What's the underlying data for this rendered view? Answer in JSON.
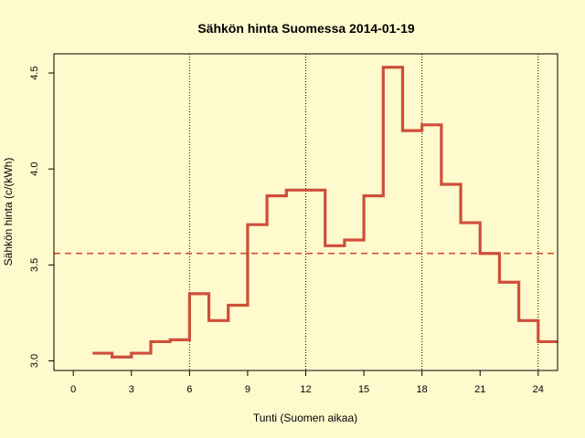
{
  "chart_data": {
    "type": "line",
    "step": true,
    "title": "Sähkön hinta Suomessa 2014-01-19",
    "xlabel": "Tunti (Suomen aikaa)",
    "ylabel": "Sähkön hinta (c/(kWh)",
    "xlim": [
      -1,
      25
    ],
    "ylim": [
      2.95,
      4.6
    ],
    "xticks": [
      0,
      3,
      6,
      9,
      12,
      15,
      18,
      21,
      24
    ],
    "yticks": [
      3.0,
      3.5,
      4.0,
      4.5
    ],
    "x": [
      1,
      2,
      3,
      4,
      5,
      6,
      7,
      8,
      9,
      10,
      11,
      12,
      13,
      14,
      15,
      16,
      17,
      18,
      19,
      20,
      21,
      22,
      23,
      24,
      25
    ],
    "series": [
      {
        "values": [
          3.04,
          3.02,
          3.04,
          3.1,
          3.11,
          3.35,
          3.21,
          3.29,
          3.71,
          3.86,
          3.89,
          3.89,
          3.6,
          3.63,
          3.86,
          4.53,
          4.2,
          4.23,
          3.92,
          3.72,
          3.56,
          3.41,
          3.21,
          3.1,
          3.1
        ],
        "color": "#CD4F39"
      }
    ],
    "mean_line": {
      "value": 3.56,
      "color": "#CD4F39",
      "style": "dashed"
    },
    "vertical_gridlines": [
      6,
      12,
      18,
      24
    ],
    "grid": false
  }
}
